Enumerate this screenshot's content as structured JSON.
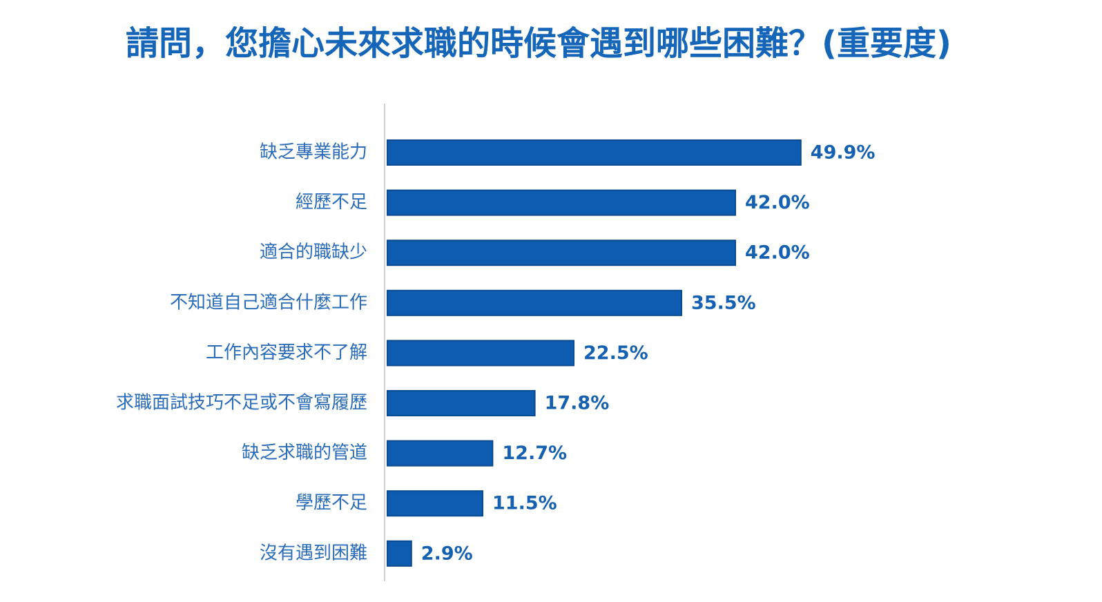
{
  "chart_data": {
    "type": "bar",
    "orientation": "horizontal",
    "title": "請問，您擔心未來求職的時候會遇到哪些困難？(重要度)",
    "categories": [
      "缺乏專業能力",
      "經歷不足",
      "適合的職缺少",
      "不知道自己適合什麼工作",
      "工作內容要求不了解",
      "求職面試技巧不足或不會寫履歷",
      "缺乏求職的管道",
      "學歷不足",
      "沒有遇到困難"
    ],
    "values": [
      49.9,
      42.0,
      42.0,
      35.5,
      22.5,
      17.8,
      12.7,
      11.5,
      2.9
    ],
    "value_labels": [
      "49.9%",
      "42.0%",
      "42.0%",
      "35.5%",
      "22.5%",
      "17.8%",
      "12.7%",
      "11.5%",
      "2.9%"
    ],
    "color": "#0d5cb0"
  }
}
